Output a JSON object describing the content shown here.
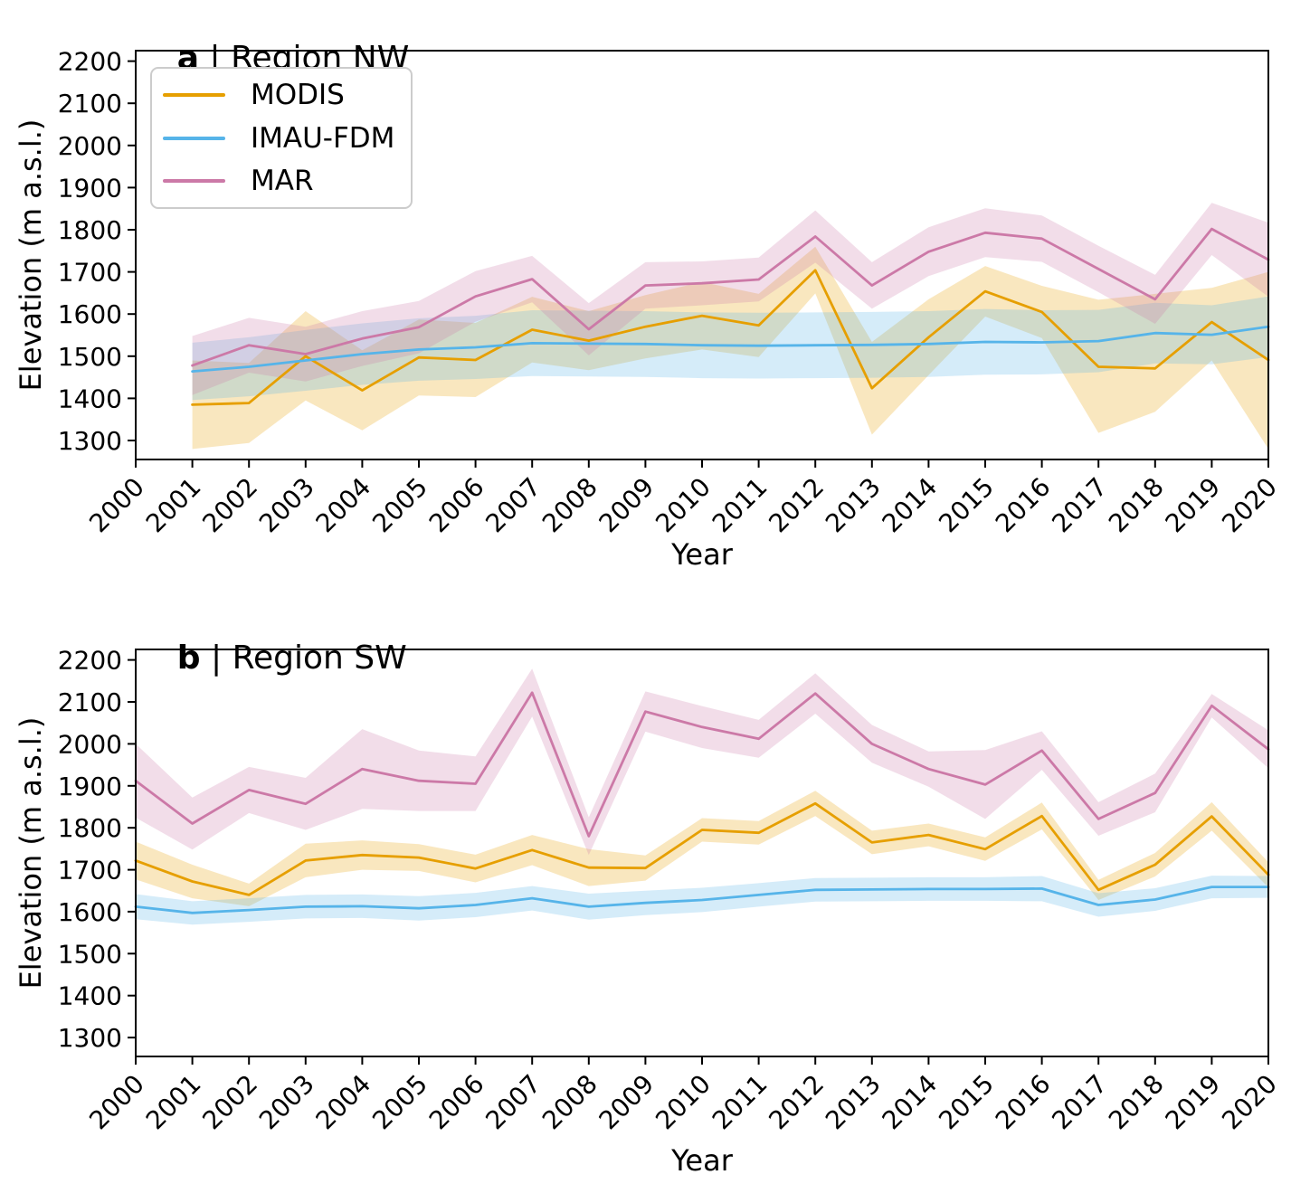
{
  "figure": {
    "background": "#ffffff"
  },
  "colors": {
    "axis": "#000000",
    "text": "#000000",
    "modis": "#E69F00",
    "imau_fdm": "#56B4E9",
    "mar": "#CC79A7",
    "band_opacity": 0.25,
    "legend_border": "#cccccc"
  },
  "legend": {
    "items": [
      {
        "label": "MODIS",
        "color": "#E69F00"
      },
      {
        "label": "IMAU-FDM",
        "color": "#56B4E9"
      },
      {
        "label": "MAR",
        "color": "#CC79A7"
      }
    ]
  },
  "chart_data": [
    {
      "type": "line",
      "panel": "a",
      "title": "a | Region NW",
      "title_bold": "a",
      "title_rest": " | Region NW",
      "xlabel": "Year",
      "ylabel": "Elevation (m a.s.l.)",
      "grid": false,
      "legend_position": "upper-left",
      "xlim": [
        2000,
        2020
      ],
      "ylim": [
        1255,
        2225
      ],
      "xticks": [
        2000,
        2001,
        2002,
        2003,
        2004,
        2005,
        2006,
        2007,
        2008,
        2009,
        2010,
        2011,
        2012,
        2013,
        2014,
        2015,
        2016,
        2017,
        2018,
        2019,
        2020
      ],
      "yticks": [
        1300,
        1400,
        1500,
        1600,
        1700,
        1800,
        1900,
        2000,
        2100,
        2200
      ],
      "x": [
        2001,
        2002,
        2003,
        2004,
        2005,
        2006,
        2007,
        2008,
        2009,
        2010,
        2011,
        2012,
        2013,
        2014,
        2015,
        2016,
        2017,
        2018,
        2019,
        2020
      ],
      "series": [
        {
          "name": "MODIS",
          "color": "#E69F00",
          "values": [
            1385,
            1389,
            1500,
            1419,
            1497,
            1491,
            1563,
            1537,
            1570,
            1596,
            1573,
            1704,
            1424,
            1545,
            1654,
            1605,
            1475,
            1471,
            1581,
            1491
          ],
          "band_upper": [
            1490,
            1484,
            1607,
            1514,
            1587,
            1579,
            1641,
            1607,
            1645,
            1676,
            1648,
            1760,
            1534,
            1635,
            1714,
            1667,
            1634,
            1648,
            1662,
            1700
          ],
          "band_lower": [
            1280,
            1294,
            1395,
            1324,
            1407,
            1403,
            1485,
            1467,
            1495,
            1516,
            1498,
            1649,
            1314,
            1455,
            1594,
            1543,
            1318,
            1368,
            1490,
            1280
          ]
        },
        {
          "name": "IMAU-FDM",
          "color": "#56B4E9",
          "values": [
            1464,
            1475,
            1490,
            1505,
            1516,
            1521,
            1531,
            1530,
            1529,
            1526,
            1525,
            1526,
            1527,
            1529,
            1534,
            1533,
            1536,
            1555,
            1551,
            1570
          ],
          "band_upper": [
            1532,
            1545,
            1562,
            1578,
            1590,
            1596,
            1609,
            1608,
            1607,
            1604,
            1603,
            1604,
            1605,
            1607,
            1612,
            1609,
            1610,
            1627,
            1621,
            1642
          ],
          "band_lower": [
            1396,
            1405,
            1418,
            1432,
            1442,
            1446,
            1453,
            1452,
            1451,
            1448,
            1447,
            1448,
            1449,
            1451,
            1456,
            1457,
            1462,
            1483,
            1481,
            1498
          ]
        },
        {
          "name": "MAR",
          "color": "#CC79A7",
          "values": [
            1478,
            1526,
            1505,
            1542,
            1569,
            1642,
            1683,
            1564,
            1668,
            1673,
            1682,
            1784,
            1668,
            1748,
            1793,
            1779,
            1707,
            1635,
            1802,
            1729
          ],
          "band_upper": [
            1548,
            1591,
            1570,
            1607,
            1631,
            1702,
            1738,
            1626,
            1723,
            1725,
            1734,
            1846,
            1723,
            1806,
            1851,
            1834,
            1762,
            1693,
            1864,
            1817
          ],
          "band_lower": [
            1408,
            1461,
            1440,
            1477,
            1507,
            1582,
            1628,
            1502,
            1613,
            1621,
            1630,
            1722,
            1613,
            1690,
            1735,
            1724,
            1652,
            1577,
            1740,
            1641
          ]
        }
      ]
    },
    {
      "type": "line",
      "panel": "b",
      "title": "b | Region SW",
      "title_bold": "b",
      "title_rest": " | Region SW",
      "xlabel": "Year",
      "ylabel": "Elevation (m a.s.l.)",
      "grid": false,
      "legend_position": "none",
      "xlim": [
        2000,
        2020
      ],
      "ylim": [
        1255,
        2225
      ],
      "xticks": [
        2000,
        2001,
        2002,
        2003,
        2004,
        2005,
        2006,
        2007,
        2008,
        2009,
        2010,
        2011,
        2012,
        2013,
        2014,
        2015,
        2016,
        2017,
        2018,
        2019,
        2020
      ],
      "yticks": [
        1300,
        1400,
        1500,
        1600,
        1700,
        1800,
        1900,
        2000,
        2100,
        2200
      ],
      "x": [
        2000,
        2001,
        2002,
        2003,
        2004,
        2005,
        2006,
        2007,
        2008,
        2009,
        2010,
        2011,
        2012,
        2013,
        2014,
        2015,
        2016,
        2017,
        2018,
        2019,
        2020
      ],
      "series": [
        {
          "name": "MODIS",
          "color": "#E69F00",
          "values": [
            1722,
            1672,
            1640,
            1722,
            1735,
            1729,
            1703,
            1747,
            1705,
            1704,
            1795,
            1788,
            1858,
            1765,
            1783,
            1749,
            1828,
            1652,
            1712,
            1827,
            1688
          ],
          "band_upper": [
            1767,
            1712,
            1667,
            1762,
            1770,
            1761,
            1736,
            1783,
            1749,
            1734,
            1823,
            1816,
            1888,
            1793,
            1810,
            1777,
            1860,
            1676,
            1740,
            1861,
            1718
          ],
          "band_lower": [
            1677,
            1632,
            1613,
            1682,
            1700,
            1697,
            1670,
            1711,
            1661,
            1674,
            1767,
            1760,
            1828,
            1737,
            1756,
            1721,
            1796,
            1628,
            1684,
            1793,
            1658
          ]
        },
        {
          "name": "IMAU-FDM",
          "color": "#56B4E9",
          "values": [
            1612,
            1597,
            1604,
            1612,
            1613,
            1608,
            1616,
            1632,
            1612,
            1621,
            1628,
            1640,
            1652,
            1653,
            1654,
            1654,
            1655,
            1616,
            1629,
            1659,
            1659
          ],
          "band_upper": [
            1642,
            1625,
            1632,
            1640,
            1641,
            1637,
            1645,
            1661,
            1643,
            1650,
            1657,
            1668,
            1680,
            1681,
            1682,
            1682,
            1685,
            1644,
            1656,
            1686,
            1685
          ],
          "band_lower": [
            1582,
            1569,
            1576,
            1584,
            1585,
            1579,
            1587,
            1603,
            1581,
            1592,
            1599,
            1612,
            1624,
            1625,
            1626,
            1626,
            1625,
            1588,
            1602,
            1632,
            1633
          ]
        },
        {
          "name": "MAR",
          "color": "#CC79A7",
          "values": [
            1912,
            1810,
            1890,
            1857,
            1940,
            1912,
            1905,
            2122,
            1780,
            2077,
            2040,
            2012,
            2120,
            2000,
            1940,
            1903,
            1984,
            1821,
            1883,
            2091,
            1987
          ],
          "band_upper": [
            2000,
            1872,
            1945,
            1919,
            2035,
            1984,
            1970,
            2179,
            1825,
            2125,
            2090,
            2057,
            2168,
            2045,
            1982,
            1985,
            2030,
            1861,
            1929,
            2119,
            2032
          ],
          "band_lower": [
            1824,
            1748,
            1835,
            1795,
            1845,
            1840,
            1840,
            2065,
            1735,
            2029,
            1990,
            1967,
            2072,
            1955,
            1898,
            1821,
            1938,
            1781,
            1837,
            2063,
            1942
          ]
        }
      ]
    }
  ]
}
